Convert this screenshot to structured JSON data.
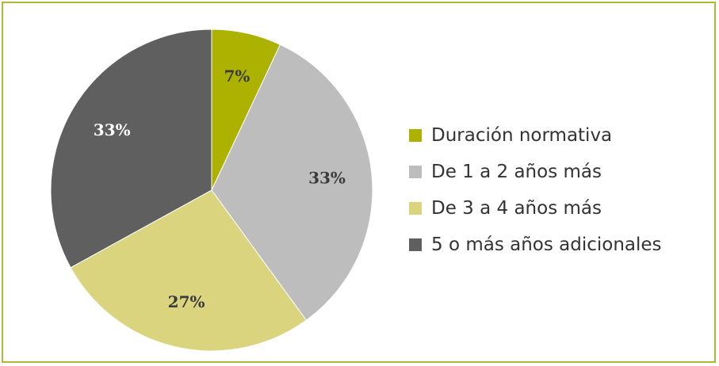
{
  "chart_data": {
    "type": "pie",
    "title": "",
    "slices": [
      {
        "label": "Duración normativa",
        "value": 7,
        "display": "7%",
        "color": "#adb200",
        "label_color": "#3a3a3a"
      },
      {
        "label": "De 1 a 2 años más",
        "value": 33,
        "display": "33%",
        "color": "#bdbdbd",
        "label_color": "#3a3a3a"
      },
      {
        "label": "De 3 a 4 años más",
        "value": 27,
        "display": "27%",
        "color": "#dad47e",
        "label_color": "#3a3a3a"
      },
      {
        "label": "5 o más años adicionales",
        "value": 33,
        "display": "33%",
        "color": "#5f5f5f",
        "label_color": "#ffffff"
      }
    ],
    "legend_position": "right",
    "start": "top, clockwise"
  }
}
